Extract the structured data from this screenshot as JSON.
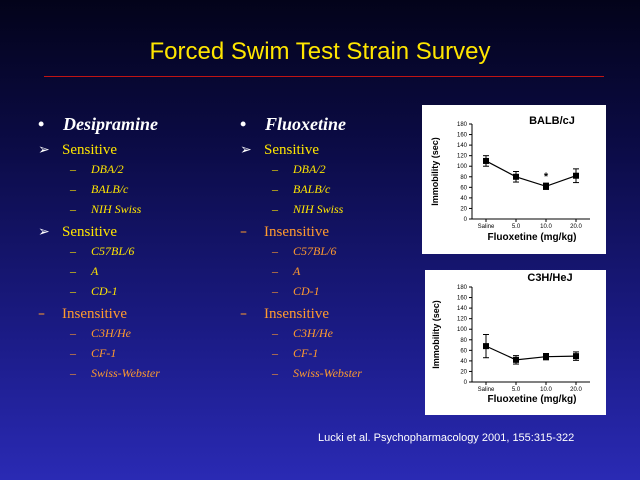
{
  "slide": {
    "title": "Forced Swim Test Strain Survey",
    "citation": "Lucki et al. Psychopharmacology 2001, 155:315-322"
  },
  "left_column": {
    "drug": "Desipramine",
    "groups": [
      {
        "label": "Sensitive",
        "kind": "sensitive",
        "strains": [
          "DBA/2",
          "BALB/c",
          "NIH Swiss"
        ]
      },
      {
        "label": "Sensitive",
        "kind": "sensitive",
        "strains": [
          "C57BL/6",
          "A",
          "CD-1"
        ]
      },
      {
        "label": "Insensitive",
        "kind": "insensitive",
        "strains": [
          "C3H/He",
          "CF-1",
          "Swiss-Webster"
        ]
      }
    ]
  },
  "right_column": {
    "drug": "Fluoxetine",
    "groups": [
      {
        "label": "Sensitive",
        "kind": "sensitive",
        "strains": [
          "DBA/2",
          "BALB/c",
          "NIH Swiss"
        ]
      },
      {
        "label": "Insensitive",
        "kind": "insensitive",
        "strains": [
          "C57BL/6",
          "A",
          "CD-1"
        ]
      },
      {
        "label": "Insensitive",
        "kind": "insensitive",
        "strains": [
          "C3H/He",
          "CF-1",
          "Swiss-Webster"
        ]
      }
    ]
  },
  "colors": {
    "title": "#ffe600",
    "rule": "#c01414",
    "sensitive": "#ffe600",
    "insensitive": "#ff9a2e",
    "text": "#ffffff"
  },
  "chart_data": [
    {
      "type": "line",
      "title": "BALB/cJ",
      "xlabel": "Fluoxetine (mg/kg)",
      "ylabel": "Immobility (sec)",
      "categories": [
        "Saline",
        "5.0",
        "10.0",
        "20.0"
      ],
      "values": [
        110,
        80,
        62,
        82
      ],
      "errors": [
        10,
        10,
        6,
        13
      ],
      "annotations": [
        {
          "category": "10.0",
          "text": "*"
        }
      ],
      "ylim": [
        0,
        180
      ],
      "yticks": [
        0,
        20,
        40,
        60,
        80,
        100,
        120,
        140,
        160,
        180
      ],
      "grid": false
    },
    {
      "type": "line",
      "title": "C3H/HeJ",
      "xlabel": "Fluoxetine (mg/kg)",
      "ylabel": "Immobility (sec)",
      "categories": [
        "Saline",
        "5.0",
        "10.0",
        "20.0"
      ],
      "values": [
        68,
        42,
        48,
        49
      ],
      "errors": [
        22,
        8,
        6,
        8
      ],
      "annotations": [],
      "ylim": [
        0,
        180
      ],
      "yticks": [
        0,
        20,
        40,
        60,
        80,
        100,
        120,
        140,
        160,
        180
      ],
      "grid": false
    }
  ]
}
